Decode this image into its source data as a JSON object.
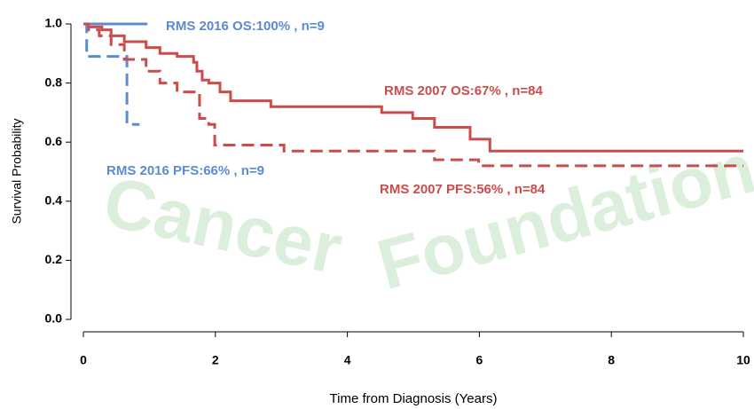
{
  "chart_data": {
    "type": "line",
    "step": "post",
    "watermark": [
      "Cancer",
      "Foundation"
    ],
    "xlabel": "Time from Diagnosis (Years)",
    "ylabel": "Survival Probability",
    "xlim": [
      0,
      10
    ],
    "ylim": [
      0,
      1
    ],
    "xticks": [
      0,
      2,
      4,
      6,
      8,
      10
    ],
    "yticks": [
      {
        "value": 0,
        "label": "0.0"
      },
      {
        "value": 0.2,
        "label": "0.2"
      },
      {
        "value": 0.4,
        "label": "0.4"
      },
      {
        "value": 0.6,
        "label": "0.6"
      },
      {
        "value": 0.8,
        "label": "0.8"
      },
      {
        "value": 1,
        "label": "1.0"
      }
    ],
    "series": [
      {
        "name": "RMS 2016 OS:100% , n=9",
        "color": "#5b8bd0",
        "dash": false,
        "x": [
          0,
          0.97
        ],
        "values": [
          1,
          1
        ]
      },
      {
        "name": "RMS 2016 PFS:66% , n=9",
        "color": "#5b8bd0",
        "dash": true,
        "x": [
          0,
          0.05,
          0.66,
          0.85
        ],
        "values": [
          1,
          0.89,
          0.66,
          0.66
        ]
      },
      {
        "name": "RMS 2007 OS:67% , n=84",
        "color": "#cc4c4c",
        "dash": false,
        "x": [
          0,
          0.08,
          0.28,
          0.42,
          0.62,
          0.95,
          1.16,
          1.42,
          1.67,
          1.72,
          1.8,
          1.9,
          2.07,
          2.23,
          2.84,
          4.52,
          4.99,
          5.32,
          5.86,
          6.16,
          10
        ],
        "values": [
          1,
          0.99,
          0.98,
          0.96,
          0.94,
          0.92,
          0.9,
          0.89,
          0.87,
          0.84,
          0.81,
          0.8,
          0.77,
          0.74,
          0.72,
          0.7,
          0.68,
          0.65,
          0.61,
          0.57,
          0.57
        ]
      },
      {
        "name": "RMS 2007 PFS:56% , n=84",
        "color": "#cc4c4c",
        "dash": true,
        "x": [
          0,
          0.08,
          0.24,
          0.42,
          0.62,
          0.95,
          1.16,
          1.42,
          1.76,
          1.9,
          1.99,
          3.04,
          5.32,
          5.99,
          10
        ],
        "values": [
          1,
          0.98,
          0.96,
          0.93,
          0.88,
          0.84,
          0.8,
          0.77,
          0.68,
          0.66,
          0.59,
          0.57,
          0.54,
          0.52,
          0.52
        ]
      }
    ]
  }
}
